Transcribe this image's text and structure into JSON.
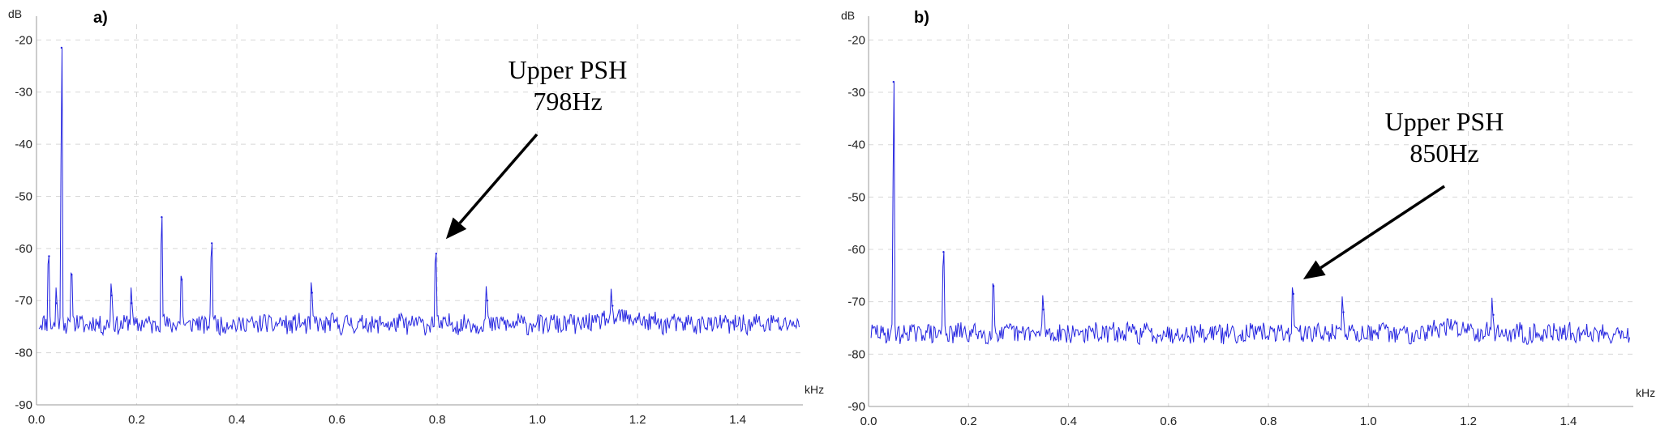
{
  "chart_data": [
    {
      "type": "line",
      "panel_label": "a)",
      "title": "",
      "xlabel": "",
      "ylabel": "",
      "x_unit": "kHz",
      "y_unit": "dB",
      "xlim": [
        0.0,
        1.53
      ],
      "ylim": [
        -90,
        -17
      ],
      "xticks": [
        "0.0",
        "0.2",
        "0.4",
        "0.6",
        "0.8",
        "1.0",
        "1.2",
        "1.4"
      ],
      "yticks": [
        "-20",
        "-30",
        "-40",
        "-50",
        "-60",
        "-70",
        "-80",
        "-90"
      ],
      "grid": true,
      "line_color": "#2424e0",
      "noise_floor": -74.5,
      "peaks": [
        {
          "x": 0.025,
          "y": -61.5
        },
        {
          "x": 0.04,
          "y": -70.5
        },
        {
          "x": 0.05,
          "y": -21.5
        },
        {
          "x": 0.07,
          "y": -65
        },
        {
          "x": 0.15,
          "y": -69
        },
        {
          "x": 0.19,
          "y": -70.5
        },
        {
          "x": 0.25,
          "y": -54
        },
        {
          "x": 0.29,
          "y": -66
        },
        {
          "x": 0.35,
          "y": -59
        },
        {
          "x": 0.55,
          "y": -68.5
        },
        {
          "x": 0.798,
          "y": -61
        },
        {
          "x": 0.9,
          "y": -70
        },
        {
          "x": 1.15,
          "y": -71
        }
      ],
      "annotations": [
        {
          "line1": "Upper PSH",
          "line2": "798Hz",
          "x": 0.798,
          "y": -61
        }
      ]
    },
    {
      "type": "line",
      "panel_label": "b)",
      "title": "",
      "xlabel": "",
      "ylabel": "",
      "x_unit": "kHz",
      "y_unit": "dB",
      "xlim": [
        0.0,
        1.53
      ],
      "ylim": [
        -90,
        -17
      ],
      "xticks": [
        "0.0",
        "0.2",
        "0.4",
        "0.6",
        "0.8",
        "1.0",
        "1.2",
        "1.4"
      ],
      "yticks": [
        "-20",
        "-30",
        "-40",
        "-50",
        "-60",
        "-70",
        "-80",
        "-90"
      ],
      "grid": true,
      "line_color": "#2424e0",
      "noise_floor": -76,
      "peaks": [
        {
          "x": 0.05,
          "y": -28
        },
        {
          "x": 0.15,
          "y": -60.5
        },
        {
          "x": 0.25,
          "y": -67
        },
        {
          "x": 0.35,
          "y": -71.5
        },
        {
          "x": 0.85,
          "y": -68.5
        },
        {
          "x": 0.95,
          "y": -72
        },
        {
          "x": 1.25,
          "y": -72.5
        }
      ],
      "annotations": [
        {
          "line1": "Upper PSH",
          "line2": "850Hz",
          "x": 0.85,
          "y": -68.5
        }
      ]
    }
  ]
}
